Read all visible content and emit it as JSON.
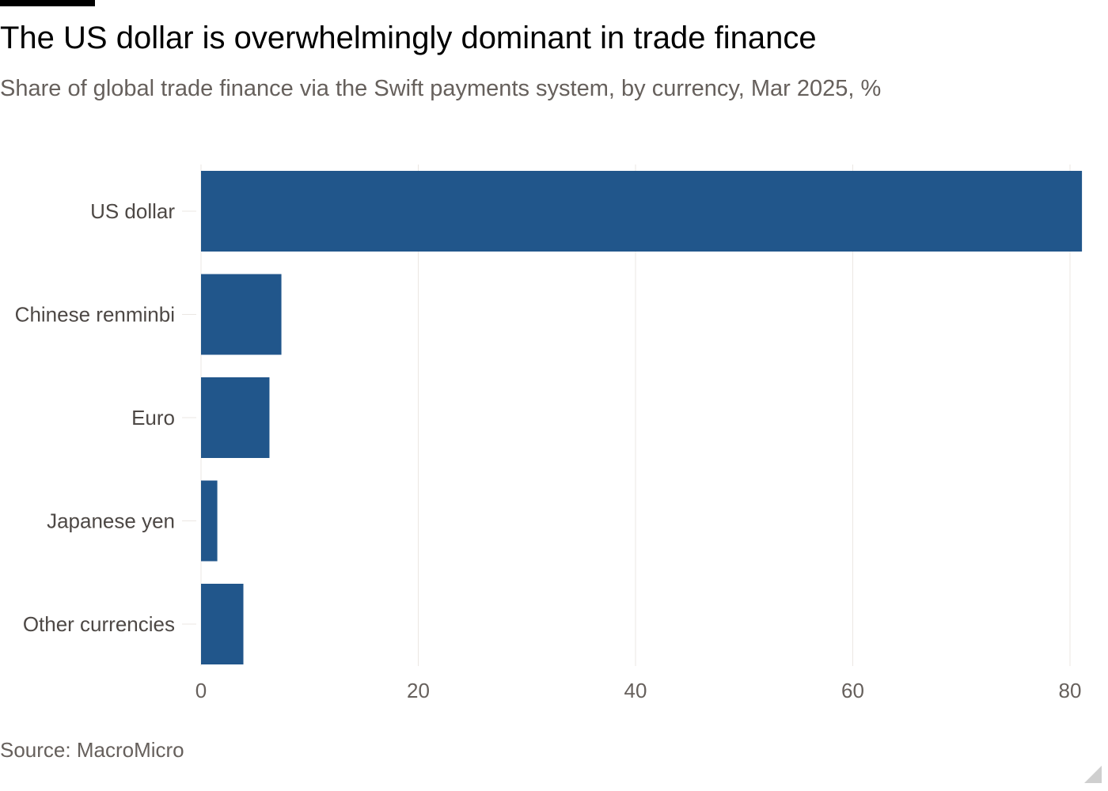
{
  "header": {
    "title": "The US dollar is overwhelmingly dominant in trade finance",
    "subtitle": "Share of global trade finance via the Swift payments system, by currency, Mar 2025, %"
  },
  "footer": {
    "source": "Source: MacroMicro"
  },
  "colors": {
    "bar": "#21568b",
    "grid": "#ebe7e3",
    "text_muted": "#66605c"
  },
  "chart_data": {
    "type": "bar",
    "orientation": "horizontal",
    "categories": [
      "US dollar",
      "Chinese renminbi",
      "Euro",
      "Japanese yen",
      "Other currencies"
    ],
    "values": [
      81.1,
      7.4,
      6.3,
      1.5,
      3.9
    ],
    "xlim": [
      0,
      80
    ],
    "xticks": [
      "0",
      "20",
      "40",
      "60",
      "80"
    ],
    "xtick_values": [
      0,
      20,
      40,
      60,
      80
    ],
    "grid": true
  }
}
